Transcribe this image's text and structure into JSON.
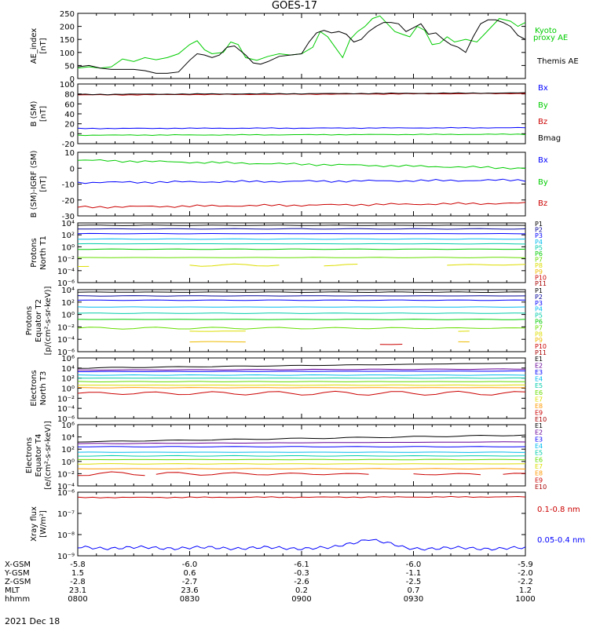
{
  "title": "GOES-17",
  "colors": {
    "black": "#000000",
    "red": "#cc0000",
    "green": "#00cc00",
    "blue": "#0000ff",
    "navy": "#000099",
    "purple": "#660099",
    "cyan": "#00bbee",
    "teal": "#00ccaa",
    "lime": "#66dd00",
    "yellow": "#dddd00",
    "gold": "#eebb00",
    "orange": "#ff9900",
    "darkred": "#aa0000",
    "brown": "#880000"
  },
  "chart_data": [
    {
      "type": "line",
      "ylabel": "AE_index\n[nT]",
      "ylim": [
        0,
        250
      ],
      "yticks": [
        "0",
        "50",
        "100",
        "150",
        "200",
        "250"
      ],
      "x": [
        "0800",
        "0830",
        "0900",
        "0930",
        "1000"
      ],
      "xlim_minutes": [
        0,
        120
      ],
      "series": [
        {
          "name": "Kyoto\nproxy AE",
          "color": "green",
          "points": [
            [
              0,
              40
            ],
            [
              3,
              45
            ],
            [
              6,
              40
            ],
            [
              9,
              45
            ],
            [
              12,
              75
            ],
            [
              15,
              65
            ],
            [
              18,
              80
            ],
            [
              21,
              72
            ],
            [
              24,
              80
            ],
            [
              27,
              95
            ],
            [
              30,
              130
            ],
            [
              32,
              145
            ],
            [
              34,
              110
            ],
            [
              36,
              95
            ],
            [
              39,
              100
            ],
            [
              41,
              140
            ],
            [
              43,
              130
            ],
            [
              45,
              80
            ],
            [
              48,
              70
            ],
            [
              51,
              85
            ],
            [
              54,
              95
            ],
            [
              57,
              90
            ],
            [
              60,
              95
            ],
            [
              63,
              120
            ],
            [
              65,
              180
            ],
            [
              67,
              160
            ],
            [
              69,
              120
            ],
            [
              71,
              80
            ],
            [
              73,
              150
            ],
            [
              75,
              180
            ],
            [
              77,
              200
            ],
            [
              79,
              230
            ],
            [
              81,
              240
            ],
            [
              83,
              210
            ],
            [
              85,
              180
            ],
            [
              87,
              170
            ],
            [
              89,
              160
            ],
            [
              91,
              200
            ],
            [
              93,
              185
            ],
            [
              95,
              130
            ],
            [
              97,
              135
            ],
            [
              99,
              160
            ],
            [
              101,
              140
            ],
            [
              104,
              150
            ],
            [
              107,
              140
            ],
            [
              109,
              170
            ],
            [
              111,
              200
            ],
            [
              113,
              230
            ],
            [
              116,
              220
            ],
            [
              118,
              200
            ],
            [
              120,
              215
            ]
          ]
        },
        {
          "name": "Themis AE",
          "color": "black",
          "points": [
            [
              0,
              45
            ],
            [
              3,
              50
            ],
            [
              6,
              40
            ],
            [
              9,
              35
            ],
            [
              12,
              35
            ],
            [
              15,
              35
            ],
            [
              18,
              30
            ],
            [
              21,
              20
            ],
            [
              24,
              20
            ],
            [
              27,
              25
            ],
            [
              30,
              70
            ],
            [
              32,
              95
            ],
            [
              34,
              90
            ],
            [
              36,
              80
            ],
            [
              38,
              90
            ],
            [
              40,
              120
            ],
            [
              42,
              125
            ],
            [
              45,
              90
            ],
            [
              47,
              60
            ],
            [
              49,
              55
            ],
            [
              51,
              65
            ],
            [
              54,
              85
            ],
            [
              57,
              90
            ],
            [
              60,
              95
            ],
            [
              62,
              140
            ],
            [
              64,
              175
            ],
            [
              66,
              185
            ],
            [
              68,
              175
            ],
            [
              70,
              180
            ],
            [
              72,
              170
            ],
            [
              74,
              140
            ],
            [
              76,
              150
            ],
            [
              78,
              180
            ],
            [
              80,
              200
            ],
            [
              82,
              215
            ],
            [
              84,
              215
            ],
            [
              86,
              210
            ],
            [
              88,
              180
            ],
            [
              90,
              195
            ],
            [
              92,
              210
            ],
            [
              94,
              170
            ],
            [
              96,
              175
            ],
            [
              98,
              150
            ],
            [
              100,
              130
            ],
            [
              102,
              120
            ],
            [
              104,
              100
            ],
            [
              106,
              160
            ],
            [
              108,
              210
            ],
            [
              110,
              225
            ],
            [
              112,
              225
            ],
            [
              114,
              215
            ],
            [
              116,
              200
            ],
            [
              118,
              165
            ],
            [
              120,
              150
            ]
          ]
        }
      ]
    },
    {
      "type": "line",
      "ylabel": "B (SM)\n[nT]",
      "ylim": [
        -20,
        100
      ],
      "yticks": [
        "-20",
        "0",
        "20",
        "40",
        "60",
        "80",
        "100"
      ],
      "series": [
        {
          "name": "Bx",
          "color": "blue",
          "values_start": 10.5,
          "values_end": 12
        },
        {
          "name": "By",
          "color": "green",
          "values_start": -3,
          "values_end": -1
        },
        {
          "name": "Bz",
          "color": "red",
          "values_start": 78,
          "values_end": 81
        },
        {
          "name": "Bmag",
          "color": "black",
          "values_start": 79,
          "values_end": 82
        }
      ]
    },
    {
      "type": "line",
      "ylabel": "B (SM)-IGRF (SM)\n[nT]",
      "ylim": [
        -30,
        10
      ],
      "yticks": [
        "-30",
        "-20",
        "-10",
        "0",
        "10"
      ],
      "series": [
        {
          "name": "Bx",
          "color": "blue",
          "values_start": -9,
          "values_end": -7.5
        },
        {
          "name": "By",
          "color": "green",
          "values_start": 5,
          "values_end": 0
        },
        {
          "name": "Bz",
          "color": "red",
          "values_start": -24.5,
          "values_end": -22
        }
      ]
    },
    {
      "type": "line",
      "ylabel": "Protons\nNorth T1",
      "scale": "log",
      "ylim": [
        -6,
        4
      ],
      "yticks": [
        "10⁴",
        "10²",
        "10⁰",
        "10⁻²",
        "10⁻⁴",
        "10⁻⁶"
      ],
      "series": [
        {
          "name": "P1",
          "color": "black"
        },
        {
          "name": "P2",
          "color": "navy"
        },
        {
          "name": "P3",
          "color": "blue"
        },
        {
          "name": "P4",
          "color": "cyan"
        },
        {
          "name": "P5",
          "color": "teal"
        },
        {
          "name": "P6",
          "color": "green"
        },
        {
          "name": "P7",
          "color": "lime"
        },
        {
          "name": "P8",
          "color": "yellow"
        },
        {
          "name": "P9",
          "color": "gold"
        },
        {
          "name": "P10",
          "color": "red"
        },
        {
          "name": "P11",
          "color": "darkred"
        }
      ]
    },
    {
      "type": "line",
      "ylabel": "Protons\nEquator T2\n[p/(cm²-s-sr-keV)]",
      "scale": "log",
      "ylim": [
        -6,
        4
      ],
      "yticks": [
        "10⁴",
        "10²",
        "10⁰",
        "10⁻²",
        "10⁻⁴",
        "10⁻⁶"
      ],
      "series": [
        {
          "name": "P1",
          "color": "black"
        },
        {
          "name": "P2",
          "color": "navy"
        },
        {
          "name": "P3",
          "color": "blue"
        },
        {
          "name": "P4",
          "color": "cyan"
        },
        {
          "name": "P5",
          "color": "teal"
        },
        {
          "name": "P6",
          "color": "green"
        },
        {
          "name": "P7",
          "color": "lime"
        },
        {
          "name": "P8",
          "color": "yellow"
        },
        {
          "name": "P9",
          "color": "gold"
        },
        {
          "name": "P10",
          "color": "red"
        },
        {
          "name": "P11",
          "color": "darkred"
        }
      ]
    },
    {
      "type": "line",
      "ylabel": "Electrons\nNorth T3",
      "scale": "log",
      "ylim": [
        -6,
        6
      ],
      "yticks": [
        "10⁶",
        "10⁴",
        "10²",
        "10⁰",
        "10⁻²",
        "10⁻⁴",
        "10⁻⁶"
      ],
      "series": [
        {
          "name": "E1",
          "color": "black"
        },
        {
          "name": "E2",
          "color": "purple"
        },
        {
          "name": "E3",
          "color": "blue"
        },
        {
          "name": "E4",
          "color": "cyan"
        },
        {
          "name": "E5",
          "color": "teal"
        },
        {
          "name": "E6",
          "color": "lime"
        },
        {
          "name": "E7",
          "color": "yellow"
        },
        {
          "name": "E8",
          "color": "orange"
        },
        {
          "name": "E9",
          "color": "red"
        },
        {
          "name": "E10",
          "color": "darkred"
        }
      ]
    },
    {
      "type": "line",
      "ylabel": "Electrons\nEquator T4\n[e/(cm²-s-sr-keV)]",
      "scale": "log",
      "ylim": [
        -4,
        6
      ],
      "yticks": [
        "10⁶",
        "10⁴",
        "10²",
        "10⁰",
        "10⁻²",
        "10⁻⁴"
      ],
      "series": [
        {
          "name": "E1",
          "color": "black"
        },
        {
          "name": "E2",
          "color": "purple"
        },
        {
          "name": "E3",
          "color": "blue"
        },
        {
          "name": "E4",
          "color": "cyan"
        },
        {
          "name": "E5",
          "color": "teal"
        },
        {
          "name": "E6",
          "color": "lime"
        },
        {
          "name": "E7",
          "color": "yellow"
        },
        {
          "name": "E8",
          "color": "orange"
        },
        {
          "name": "E9",
          "color": "red"
        },
        {
          "name": "E10",
          "color": "darkred"
        }
      ]
    },
    {
      "type": "line",
      "ylabel": "Xray flux\n[W/m²]",
      "scale": "log",
      "ylim": [
        -9,
        -6
      ],
      "yticks": [
        "10⁻⁶",
        "10⁻⁷",
        "10⁻⁸",
        "10⁻⁹"
      ],
      "series": [
        {
          "name": "0.1-0.8 nm",
          "color": "red"
        },
        {
          "name": "0.05-0.4 nm",
          "color": "blue"
        }
      ]
    }
  ],
  "x_axis": {
    "tick_labels": [
      "0800",
      "0830",
      "0900",
      "0930",
      "1000"
    ],
    "rows": [
      {
        "label": "X-GSM",
        "values": [
          "-5.8",
          "-6.0",
          "-6.1",
          "-6.0",
          "-5.9"
        ]
      },
      {
        "label": "Y-GSM",
        "values": [
          "1.5",
          "0.6",
          "-0.3",
          "-1.1",
          "-2.0"
        ]
      },
      {
        "label": "Z-GSM",
        "values": [
          "-2.8",
          "-2.7",
          "-2.6",
          "-2.5",
          "-2.2"
        ]
      },
      {
        "label": "MLT",
        "values": [
          "23.1",
          "23.6",
          "0.2",
          "0.7",
          "1.2"
        ]
      },
      {
        "label": "hhmm",
        "values": [
          "0800",
          "0830",
          "0900",
          "0930",
          "1000"
        ]
      }
    ],
    "date": "2021 Dec 18"
  }
}
